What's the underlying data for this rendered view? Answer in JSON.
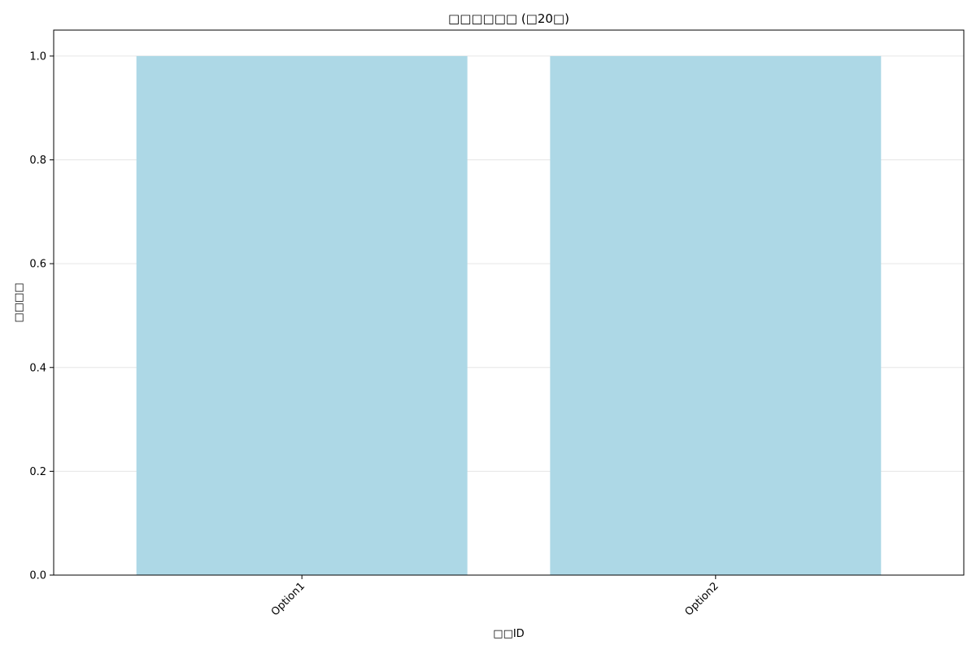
{
  "chart_data": {
    "type": "bar",
    "title": "□□□□□□ (□20□)",
    "xlabel": "□□ID",
    "ylabel": "□□□□",
    "categories": [
      "Option1",
      "Option2"
    ],
    "values": [
      1.0,
      1.0
    ],
    "ylim": [
      0,
      1.05
    ],
    "yticks": [
      0.0,
      0.2,
      0.4,
      0.6,
      0.8,
      1.0
    ],
    "ytick_labels": [
      "0.0",
      "0.2",
      "0.4",
      "0.6",
      "0.8",
      "1.0"
    ],
    "grid": "y-axis",
    "legend": "none",
    "bar_color": "#ADD8E6",
    "grid_color": "#E6E6E6"
  }
}
